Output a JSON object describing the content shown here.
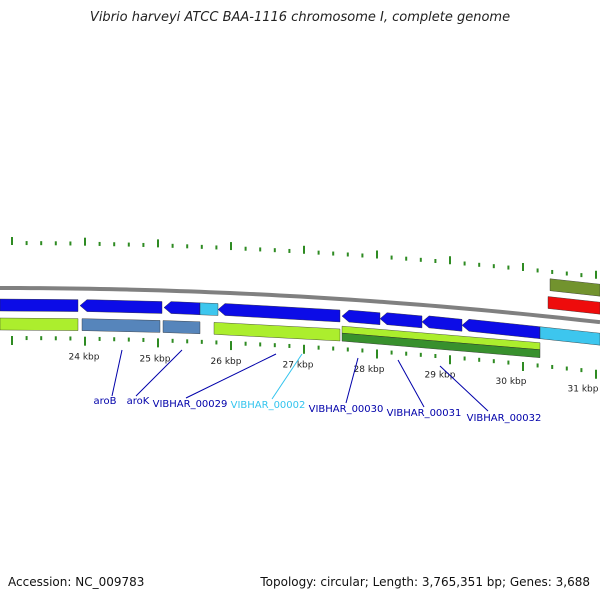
{
  "title": "Vibrio harveyi ATCC BAA-1116 chromosome I, complete genome",
  "footer": {
    "accession": "Accession: NC_009783",
    "stats": "Topology: circular; Length: 3,765,351 bp; Genes: 3,688"
  },
  "colors": {
    "backbone": "#808080",
    "forward_cds": "#0000e6",
    "light_blue_feature": "#33c4ee",
    "yellow_green_feature": "#a8ee22",
    "steel_blue_feature": "#4d7fb8",
    "dark_green_feature": "#2e8b22",
    "olive_feature": "#6b8e23",
    "red_feature": "#ee0000",
    "tick": "#2e8b22",
    "dark_label": "#0000aa",
    "cyan_label": "#33c4ee"
  },
  "scale": {
    "unit": "kbp",
    "labels": [
      "24 kbp",
      "25 kbp",
      "26 kbp",
      "27 kbp",
      "28 kbp",
      "29 kbp",
      "30 kbp",
      "31 kbp"
    ]
  },
  "gene_labels": [
    {
      "text": "aroB",
      "color": "dark"
    },
    {
      "text": "aroK",
      "color": "dark"
    },
    {
      "text": "VIBHAR_00029",
      "color": "dark"
    },
    {
      "text": "VIBHAR_00002",
      "color": "cyan"
    },
    {
      "text": "VIBHAR_00030",
      "color": "dark"
    },
    {
      "text": "VIBHAR_00031",
      "color": "dark"
    },
    {
      "text": "VIBHAR_00032",
      "color": "dark"
    }
  ]
}
